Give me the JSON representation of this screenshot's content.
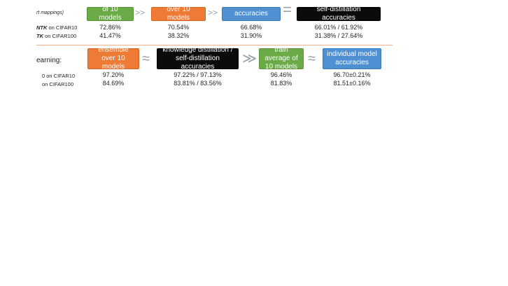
{
  "top": {
    "crop_label": "rt mappings)",
    "boxes": {
      "green": "of 10 models",
      "orange": "over 10 models",
      "blue": "accuracies",
      "black": "self-distillation accuracies"
    },
    "symbols": {
      "a": ">>",
      "b": ">>",
      "c": "="
    },
    "rows": [
      {
        "label_bold": "NTK",
        "label_rest": " on CIFAR10",
        "values": [
          "72.86%",
          "70.54%",
          "66.68%",
          "66.01% / 61.92%"
        ]
      },
      {
        "label_bold": "TK",
        "label_rest": " on CIFAR100",
        "values": [
          "41.47%",
          "38.32%",
          "31.90%",
          "31.38% / 27.64%"
        ]
      }
    ]
  },
  "bottom": {
    "left_label": "earning:",
    "boxes": {
      "ensemble": "ensemble over 10 models",
      "distill": "knowledge distillation / self-distillation accuracies",
      "train_avg": "train average of 10 models",
      "individual": "individual model accuracies"
    },
    "symbols": {
      "a": "≈",
      "b": "≫",
      "c": "≈"
    },
    "rows": [
      {
        "label": "0 on CIFAR10",
        "values": [
          "97.20%",
          "97.22% / 97.13%",
          "96.46%",
          "96.70±0.21%"
        ]
      },
      {
        "label": " on CIFAR100",
        "values": [
          "84.69%",
          "83.81% / 83.56%",
          "81.83%",
          "81.51±0.16%"
        ]
      }
    ]
  }
}
